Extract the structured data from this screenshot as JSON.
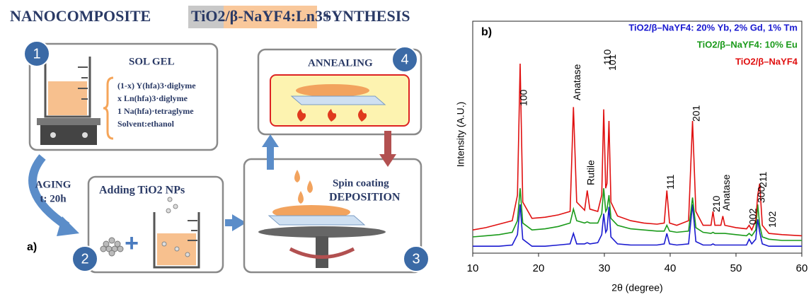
{
  "diagram": {
    "title": [
      "NANOCOMPOSITE",
      "TiO2/β-NaYF4:Ln3+",
      "SYNTHESIS"
    ],
    "panel_label": "a)",
    "steps": [
      {
        "number": "1",
        "title": "SOL GEL",
        "lines": [
          "(1-x) Y(hfa)3·diglyme",
          "x Ln(hfa)3·diglyme",
          "1 Na(hfa)·tetraglyme",
          "Solvent:ethanol"
        ]
      },
      {
        "number": "2",
        "title": "Adding TiO2 NPs"
      },
      {
        "number": "3",
        "title": "Spin coating",
        "subtitle": "DEPOSITION"
      },
      {
        "number": "4",
        "title": "ANNEALING"
      }
    ],
    "aging": [
      "AGING",
      "t: 20h"
    ]
  },
  "chart_data": {
    "type": "line",
    "panel_label": "b)",
    "x_label": "2θ (degree)",
    "y_label": "Intensity (A.U.)",
    "x": [
      10,
      12,
      14,
      16,
      16.8,
      17.2,
      17.6,
      19,
      21,
      23,
      24.8,
      25.3,
      25.8,
      27,
      27.4,
      27.8,
      29,
      29.6,
      29.9,
      30.2,
      30.4,
      30.7,
      31,
      32,
      34,
      36,
      38,
      39.1,
      39.5,
      39.9,
      41,
      42.8,
      43.4,
      43.9,
      45,
      46.2,
      46.5,
      46.8,
      47.7,
      48,
      48.3,
      50,
      51.6,
      52,
      52.4,
      53,
      53.3,
      53.6,
      54,
      55,
      57,
      60
    ],
    "series": [
      {
        "name": "TiO2/β–NaYF4: 20% Yb, 2% Gd, 1% Tm",
        "color": "#1a1ad0",
        "values": [
          3,
          3,
          3,
          3.5,
          8,
          21,
          6,
          3,
          3,
          3.5,
          4,
          8.5,
          4,
          4,
          4.5,
          4,
          4.5,
          8,
          17,
          9,
          10,
          20,
          7,
          4,
          3.5,
          3.5,
          3.5,
          4,
          8.5,
          4,
          3.5,
          4,
          21,
          5,
          3.5,
          3.5,
          4,
          3.5,
          3.5,
          3.5,
          3.5,
          3.5,
          3.5,
          6,
          4,
          6,
          14.6,
          9,
          4,
          3,
          3,
          3
        ]
      },
      {
        "name": "TiO2/β–NaYF4: 10% Eu",
        "color": "#1a9a1a",
        "values": [
          7,
          7.5,
          8,
          9,
          14,
          28,
          13,
          10,
          10.5,
          11.5,
          13,
          19,
          14,
          13,
          13.5,
          13,
          13,
          17,
          28,
          18,
          19,
          25,
          15,
          12,
          10.5,
          10,
          9.5,
          9.5,
          12,
          9.5,
          9,
          9.5,
          24,
          11,
          9,
          8.5,
          9,
          8.5,
          8.5,
          8.5,
          8.5,
          8,
          7.5,
          8.5,
          7.5,
          10,
          21,
          12,
          7,
          6,
          5.5,
          5.5
        ]
      },
      {
        "name": "TiO2/β–NaYF4",
        "color": "#e01010",
        "values": [
          10,
          11,
          12.5,
          14,
          25,
          81.7,
          22,
          15,
          15.5,
          16.5,
          18,
          63,
          22,
          18.5,
          27,
          19,
          18,
          25,
          62,
          28,
          30,
          57,
          22,
          16,
          14,
          13,
          12.5,
          13,
          27,
          13,
          12,
          14,
          57,
          18,
          12,
          12,
          18,
          12,
          12,
          16,
          12,
          11,
          10.5,
          12,
          10,
          14,
          25,
          30,
          12,
          8.5,
          8,
          7.5
        ]
      }
    ],
    "annotations": [
      {
        "text": "100",
        "x": 17.2
      },
      {
        "text": "Anatase",
        "x": 25.3
      },
      {
        "text": "Rutile",
        "x": 27.4
      },
      {
        "text": "110",
        "x": 29.9
      },
      {
        "text": "101",
        "x": 30.7
      },
      {
        "text": "111",
        "x": 39.5
      },
      {
        "text": "201",
        "x": 43.4
      },
      {
        "text": "210",
        "x": 46.5
      },
      {
        "text": "Anatase",
        "x": 48
      },
      {
        "text": "002",
        "x": 52
      },
      {
        "text": "300",
        "x": 53.3
      },
      {
        "text": "211",
        "x": 53.6
      },
      {
        "text": "102",
        "x": 55
      }
    ],
    "xlim": [
      10,
      60
    ],
    "ylim": [
      0,
      100
    ],
    "xticks": [
      10,
      20,
      30,
      40,
      50,
      60
    ]
  }
}
